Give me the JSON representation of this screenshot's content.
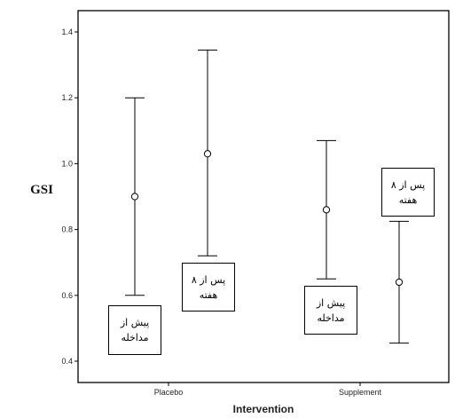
{
  "chart_data": {
    "type": "errorbar",
    "xlabel": "Intervention",
    "ylabel": "GSI",
    "ylim": [
      0.38,
      1.45
    ],
    "yticks": [
      "1.4",
      "1.2",
      "1.0",
      "0.8",
      "0.6",
      "0.4"
    ],
    "ytick_values": [
      1.4,
      1.2,
      1.0,
      0.8,
      0.6,
      0.4
    ],
    "categories": [
      "Placebo",
      "Supplement"
    ],
    "groups": [
      {
        "category": "Placebo",
        "points": [
          {
            "label": "پیش از مداخله",
            "mean": 0.9,
            "lower": 0.6,
            "upper": 1.2
          },
          {
            "label": "پس از ۸ هفته",
            "mean": 1.03,
            "lower": 0.72,
            "upper": 1.345
          }
        ]
      },
      {
        "category": "Supplement",
        "points": [
          {
            "label": "پیش از مداخله",
            "mean": 0.86,
            "lower": 0.65,
            "upper": 1.07
          },
          {
            "label": "پس از ۸ هفته",
            "mean": 0.64,
            "lower": 0.455,
            "upper": 0.825
          }
        ]
      }
    ],
    "annotations": [
      {
        "line1": "پیش از",
        "line2": "مداخله"
      },
      {
        "line1": "پس از ۸",
        "line2": "هفته"
      },
      {
        "line1": "پیش از",
        "line2": "مداخله"
      },
      {
        "line1": "پس از ۸",
        "line2": "هفته"
      }
    ],
    "grid": false
  }
}
